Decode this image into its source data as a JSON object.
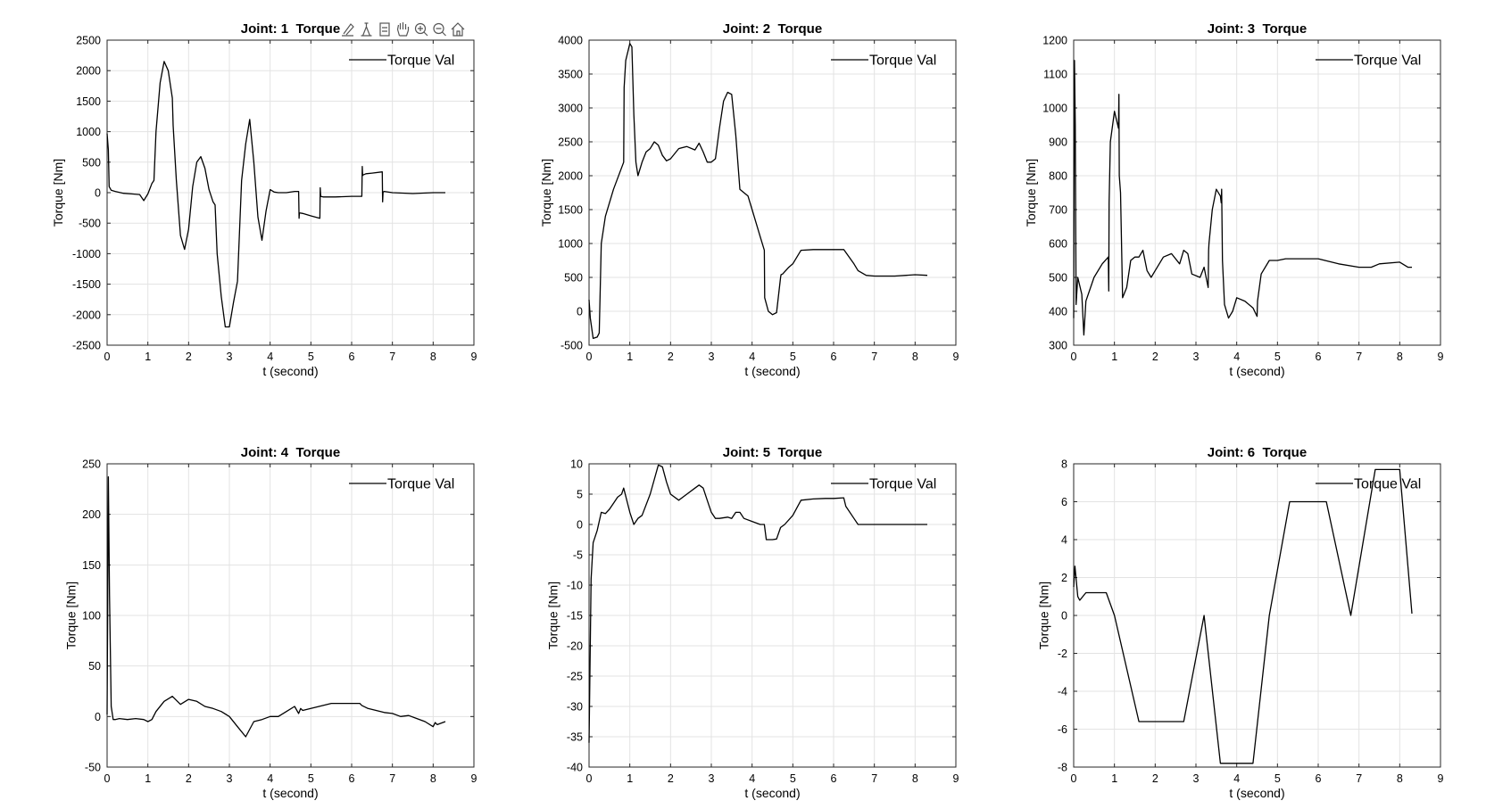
{
  "toolbar": {
    "icons": [
      "brush-icon",
      "data-tips-icon",
      "export-icon",
      "pan-hand-icon",
      "zoom-in-icon",
      "zoom-out-icon",
      "home-icon"
    ]
  },
  "chart_data": [
    {
      "type": "line",
      "title": "Joint: 1  Torque",
      "xlabel": "t (second)",
      "ylabel": "Torque [Nm]",
      "xlim": [
        0,
        9
      ],
      "ylim": [
        -2500,
        2500
      ],
      "xticks": [
        0,
        1,
        2,
        3,
        4,
        5,
        6,
        7,
        8,
        9
      ],
      "yticks": [
        -2500,
        -2000,
        -1500,
        -1000,
        -500,
        0,
        500,
        1000,
        1500,
        2000,
        2500
      ],
      "grid": true,
      "legend": "top-right",
      "series": [
        {
          "name": "Torque Val",
          "color": "#000000",
          "x": [
            0,
            0.03,
            0.05,
            0.1,
            0.2,
            0.4,
            0.6,
            0.8,
            0.9,
            1.0,
            1.1,
            1.15,
            1.2,
            1.3,
            1.4,
            1.5,
            1.6,
            1.62,
            1.7,
            1.8,
            1.9,
            2.0,
            2.1,
            2.2,
            2.3,
            2.4,
            2.5,
            2.6,
            2.65,
            2.7,
            2.8,
            2.9,
            3.0,
            3.1,
            3.2,
            3.3,
            3.4,
            3.5,
            3.6,
            3.7,
            3.8,
            3.9,
            4.0,
            4.1,
            4.2,
            4.4,
            4.6,
            4.7,
            4.71,
            4.72,
            4.8,
            5.0,
            5.22,
            5.23,
            5.24,
            5.3,
            5.6,
            6.0,
            6.25,
            6.26,
            6.27,
            6.28,
            6.35,
            6.5,
            6.75,
            6.76,
            6.77,
            6.8,
            7.0,
            7.5,
            8.0,
            8.3
          ],
          "y": [
            970,
            700,
            100,
            40,
            20,
            -10,
            -20,
            -30,
            -130,
            -20,
            150,
            200,
            1000,
            1800,
            2150,
            2000,
            1550,
            1100,
            200,
            -700,
            -930,
            -600,
            100,
            500,
            590,
            400,
            50,
            -150,
            -200,
            -1000,
            -1700,
            -2200,
            -2200,
            -1800,
            -1450,
            200,
            800,
            1200,
            500,
            -400,
            -780,
            -300,
            50,
            10,
            0,
            0,
            20,
            20,
            -420,
            -330,
            -340,
            -380,
            -420,
            80,
            -60,
            -70,
            -70,
            -60,
            -60,
            430,
            280,
            290,
            310,
            320,
            340,
            -150,
            10,
            20,
            0,
            -15,
            0,
            0
          ]
        }
      ]
    },
    {
      "type": "line",
      "title": "Joint: 2  Torque",
      "xlabel": "t (second)",
      "ylabel": "Torque [Nm]",
      "xlim": [
        0,
        9
      ],
      "ylim": [
        -500,
        4000
      ],
      "xticks": [
        0,
        1,
        2,
        3,
        4,
        5,
        6,
        7,
        8,
        9
      ],
      "yticks": [
        -500,
        0,
        500,
        1000,
        1500,
        2000,
        2500,
        3000,
        3500,
        4000
      ],
      "grid": true,
      "legend": "top-right",
      "series": [
        {
          "name": "Torque Val",
          "color": "#000000",
          "x": [
            0,
            0.03,
            0.1,
            0.2,
            0.25,
            0.3,
            0.4,
            0.6,
            0.85,
            0.86,
            0.9,
            1.0,
            1.05,
            1.1,
            1.15,
            1.2,
            1.3,
            1.4,
            1.5,
            1.6,
            1.7,
            1.8,
            1.9,
            2.0,
            2.2,
            2.4,
            2.6,
            2.7,
            2.8,
            2.9,
            3.0,
            3.1,
            3.2,
            3.3,
            3.4,
            3.5,
            3.6,
            3.7,
            3.8,
            3.9,
            4.0,
            4.2,
            4.3,
            4.31,
            4.4,
            4.5,
            4.6,
            4.7,
            4.71,
            4.75,
            4.9,
            5.0,
            5.2,
            5.5,
            6.0,
            6.25,
            6.5,
            6.6,
            6.8,
            7.0,
            7.5,
            8.0,
            8.3
          ],
          "y": [
            170,
            -100,
            -400,
            -380,
            -320,
            1000,
            1400,
            1800,
            2200,
            3300,
            3700,
            3950,
            3900,
            2900,
            2200,
            2000,
            2200,
            2350,
            2400,
            2500,
            2450,
            2300,
            2220,
            2250,
            2400,
            2430,
            2380,
            2480,
            2350,
            2200,
            2200,
            2250,
            2700,
            3100,
            3230,
            3200,
            2600,
            1800,
            1750,
            1700,
            1500,
            1100,
            900,
            200,
            0,
            -50,
            -20,
            500,
            540,
            550,
            650,
            700,
            900,
            910,
            910,
            910,
            700,
            600,
            530,
            520,
            520,
            540,
            530
          ]
        }
      ]
    },
    {
      "type": "line",
      "title": "Joint: 3  Torque",
      "xlabel": "t (second)",
      "ylabel": "Torque [Nm]",
      "xlim": [
        0,
        9
      ],
      "ylim": [
        300,
        1200
      ],
      "xticks": [
        0,
        1,
        2,
        3,
        4,
        5,
        6,
        7,
        8,
        9
      ],
      "yticks": [
        300,
        400,
        500,
        600,
        700,
        800,
        900,
        1000,
        1100,
        1200
      ],
      "grid": true,
      "legend": "top-right",
      "series": [
        {
          "name": "Torque Val",
          "color": "#000000",
          "x": [
            0,
            0.02,
            0.04,
            0.06,
            0.1,
            0.2,
            0.25,
            0.3,
            0.5,
            0.7,
            0.85,
            0.86,
            0.87,
            0.9,
            1.0,
            1.1,
            1.11,
            1.12,
            1.15,
            1.2,
            1.3,
            1.4,
            1.5,
            1.6,
            1.7,
            1.8,
            1.9,
            2.0,
            2.2,
            2.4,
            2.6,
            2.7,
            2.8,
            2.9,
            3.1,
            3.2,
            3.3,
            3.31,
            3.32,
            3.4,
            3.5,
            3.6,
            3.62,
            3.63,
            3.65,
            3.7,
            3.8,
            3.9,
            4.0,
            4.2,
            4.4,
            4.5,
            4.51,
            4.6,
            4.8,
            5.0,
            5.2,
            5.5,
            6.0,
            6.5,
            7.0,
            7.3,
            7.5,
            8.0,
            8.2,
            8.3
          ],
          "y": [
            380,
            1140,
            950,
            420,
            500,
            450,
            330,
            430,
            500,
            540,
            560,
            460,
            720,
            900,
            990,
            940,
            1040,
            800,
            750,
            440,
            470,
            550,
            560,
            560,
            580,
            520,
            500,
            520,
            560,
            570,
            540,
            580,
            570,
            510,
            500,
            530,
            470,
            580,
            600,
            700,
            760,
            740,
            720,
            760,
            550,
            420,
            380,
            400,
            440,
            430,
            410,
            385,
            430,
            510,
            550,
            550,
            555,
            555,
            555,
            540,
            530,
            530,
            540,
            545,
            530,
            530
          ]
        }
      ]
    },
    {
      "type": "line",
      "title": "Joint: 4  Torque",
      "xlabel": "t (second)",
      "ylabel": "Torque [Nm]",
      "xlim": [
        0,
        9
      ],
      "ylim": [
        -50,
        250
      ],
      "xticks": [
        0,
        1,
        2,
        3,
        4,
        5,
        6,
        7,
        8,
        9
      ],
      "yticks": [
        -50,
        0,
        50,
        100,
        150,
        200,
        250
      ],
      "grid": true,
      "legend": "top-right",
      "series": [
        {
          "name": "Torque Val",
          "color": "#000000",
          "x": [
            0,
            0.03,
            0.06,
            0.1,
            0.15,
            0.2,
            0.3,
            0.5,
            0.7,
            0.9,
            1.0,
            1.1,
            1.2,
            1.4,
            1.6,
            1.8,
            2.0,
            2.2,
            2.4,
            2.6,
            2.8,
            3.0,
            3.2,
            3.4,
            3.6,
            3.8,
            4.0,
            4.2,
            4.4,
            4.6,
            4.7,
            4.75,
            4.8,
            5.0,
            5.2,
            5.5,
            6.0,
            6.2,
            6.25,
            6.4,
            6.6,
            6.8,
            7.0,
            7.2,
            7.4,
            7.6,
            7.8,
            8.0,
            8.05,
            8.1,
            8.3
          ],
          "y": [
            2,
            237,
            120,
            10,
            -3,
            -3,
            -2,
            -3,
            -2,
            -3,
            -5,
            -3,
            5,
            15,
            20,
            12,
            17,
            15,
            10,
            8,
            5,
            0,
            -10,
            -20,
            -5,
            -3,
            0,
            0,
            5,
            10,
            3,
            8,
            6,
            8,
            10,
            13,
            13,
            13,
            11,
            8,
            6,
            4,
            3,
            0,
            1,
            -2,
            -5,
            -10,
            -6,
            -8,
            -5
          ]
        }
      ]
    },
    {
      "type": "line",
      "title": "Joint: 5  Torque",
      "xlabel": "t (second)",
      "ylabel": "Torque [Nm]",
      "xlim": [
        0,
        9
      ],
      "ylim": [
        -40,
        10
      ],
      "xticks": [
        0,
        1,
        2,
        3,
        4,
        5,
        6,
        7,
        8,
        9
      ],
      "yticks": [
        -40,
        -35,
        -30,
        -25,
        -20,
        -15,
        -10,
        -5,
        0,
        5,
        10
      ],
      "grid": true,
      "legend": "top-right",
      "series": [
        {
          "name": "Torque Val",
          "color": "#000000",
          "x": [
            0,
            0.05,
            0.1,
            0.2,
            0.3,
            0.4,
            0.5,
            0.6,
            0.7,
            0.8,
            0.85,
            1.0,
            1.1,
            1.2,
            1.3,
            1.5,
            1.7,
            1.8,
            1.9,
            2.0,
            2.2,
            2.4,
            2.6,
            2.7,
            2.8,
            2.9,
            3.0,
            3.1,
            3.2,
            3.4,
            3.5,
            3.6,
            3.7,
            3.8,
            4.0,
            4.2,
            4.3,
            4.35,
            4.5,
            4.6,
            4.7,
            4.8,
            5.0,
            5.2,
            5.5,
            5.8,
            6.0,
            6.25,
            6.3,
            6.5,
            6.6,
            6.7,
            7.0,
            7.5,
            8.0,
            8.3
          ],
          "y": [
            -36,
            -9,
            -3,
            -1,
            2,
            1.8,
            2.5,
            3.5,
            4.5,
            5,
            6,
            2,
            0,
            1,
            1.5,
            5,
            9.8,
            9.5,
            7,
            5,
            4,
            5,
            6,
            6.5,
            6,
            4,
            2,
            1,
            1,
            1.2,
            1,
            2,
            2,
            1,
            0.5,
            0,
            0,
            -2.5,
            -2.5,
            -2.4,
            -0.5,
            0,
            1.5,
            4,
            4.2,
            4.3,
            4.3,
            4.4,
            3,
            1,
            0,
            0,
            0,
            0,
            0,
            0
          ]
        }
      ]
    },
    {
      "type": "line",
      "title": "Joint: 6  Torque",
      "xlabel": "t (second)",
      "ylabel": "Torque [Nm]",
      "xlim": [
        0,
        9
      ],
      "ylim": [
        -8,
        8
      ],
      "xticks": [
        0,
        1,
        2,
        3,
        4,
        5,
        6,
        7,
        8,
        9
      ],
      "yticks": [
        -8,
        -6,
        -4,
        -2,
        0,
        2,
        4,
        6,
        8
      ],
      "grid": true,
      "legend": "top-right",
      "series": [
        {
          "name": "Torque Val",
          "color": "#000000",
          "x": [
            0,
            0.03,
            0.1,
            0.15,
            0.3,
            0.6,
            0.8,
            1.0,
            1.6,
            2.7,
            3.2,
            3.6,
            4.4,
            4.8,
            5.3,
            6.2,
            6.8,
            7.4,
            8.0,
            8.3
          ],
          "y": [
            1.5,
            2.6,
            1,
            0.8,
            1.2,
            1.2,
            1.2,
            0,
            -5.6,
            -5.6,
            0,
            -7.8,
            -7.8,
            0,
            6,
            6,
            0,
            7.7,
            7.7,
            0.1
          ]
        }
      ]
    }
  ]
}
